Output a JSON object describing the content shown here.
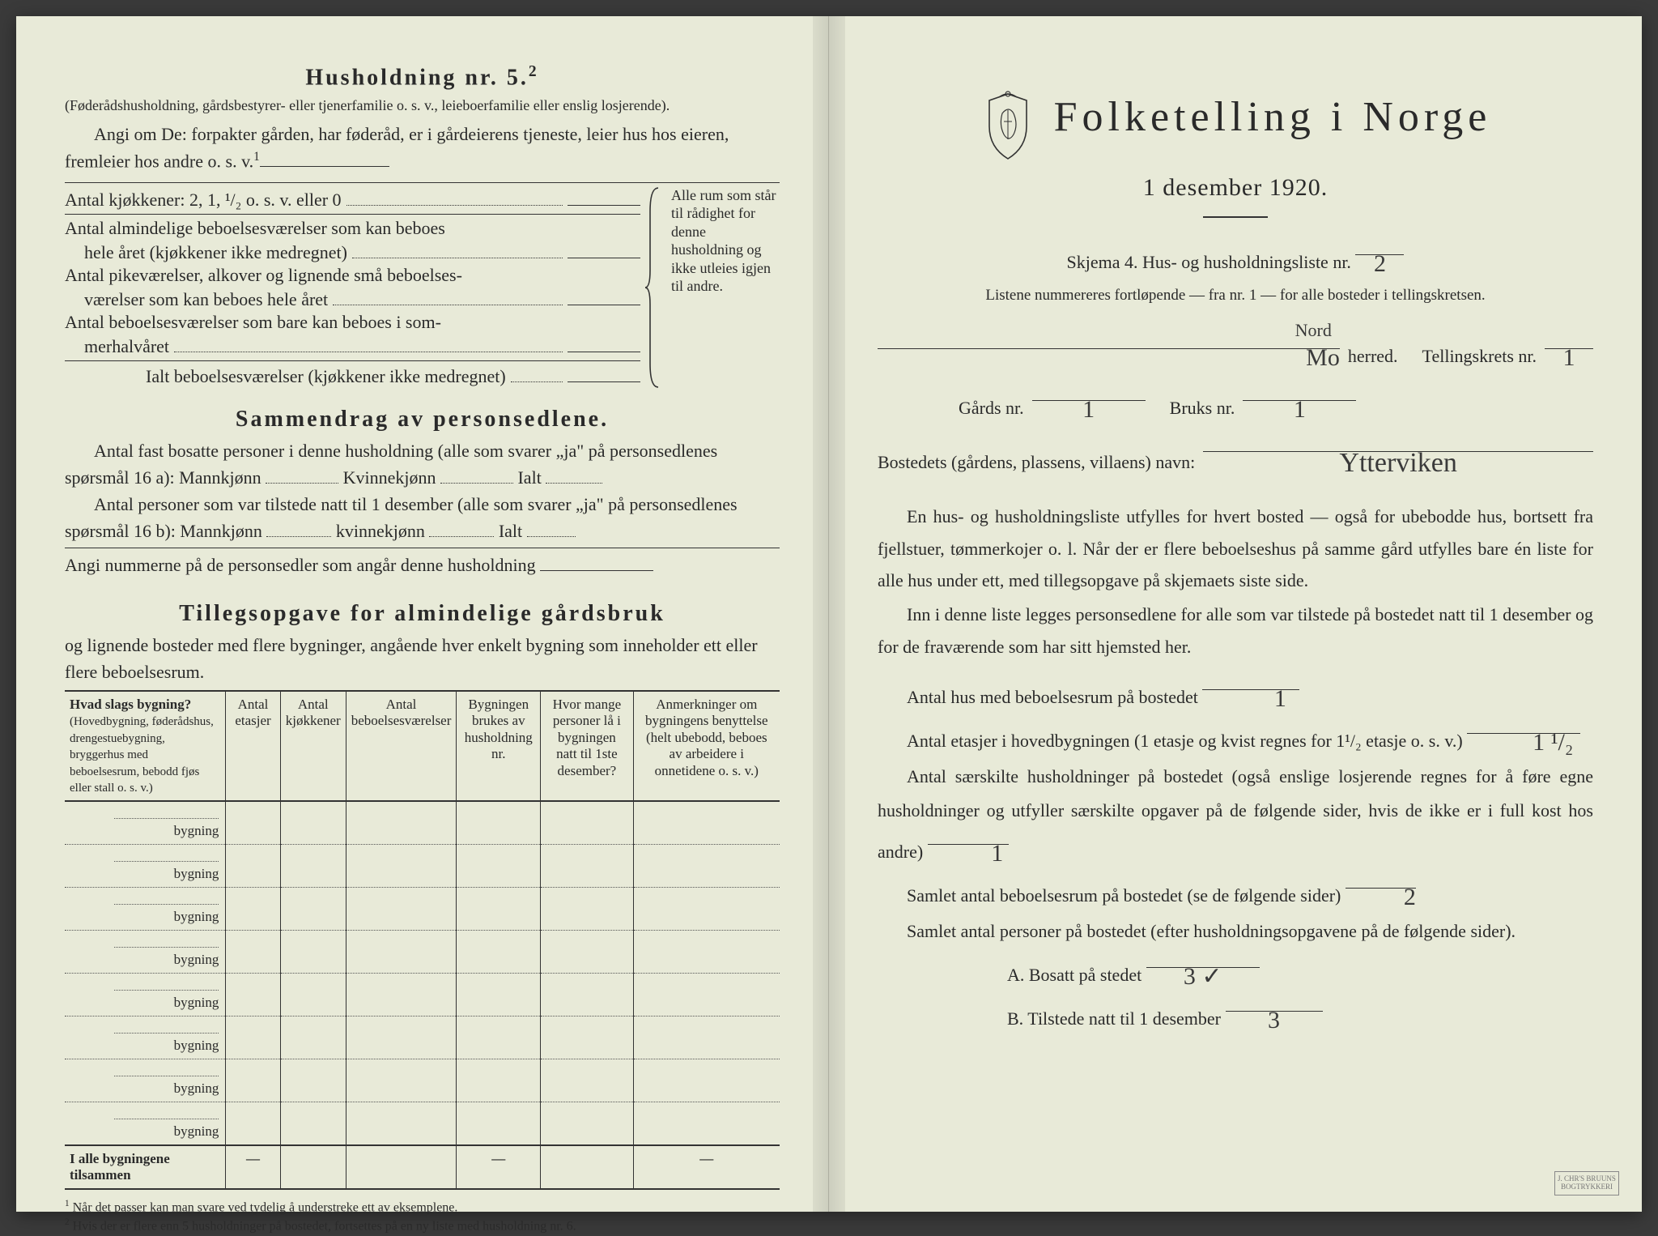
{
  "left": {
    "h5_title": "Husholdning nr. 5.",
    "h5_sup": "2",
    "h5_par": "(Føderådshusholdning, gårdsbestyrer- eller tjenerfamilie o. s. v., leieboerfamilie eller enslig losjerende).",
    "h5_angi_lead": "Angi om De:",
    "h5_angi_cont": "forpakter gården, har føderåd, er i gårdeierens tjeneste, leier hus hos eieren, fremleier hos andre o. s. v.",
    "h5_angi_sup": "1",
    "row_kjokken": "Antal kjøkkener: 2, 1, ¹/₂ o. s. v. eller 0",
    "row_alm1": "Antal almindelige beboelsesværelser som kan beboes",
    "row_alm2": "hele året (kjøkkener ikke medregnet)",
    "row_pike1": "Antal pikeværelser, alkover og lignende små beboelses-",
    "row_pike2": "værelser som kan beboes hele året",
    "row_som1": "Antal beboelsesværelser som bare kan beboes i som-",
    "row_som2": "merhalvåret",
    "row_ialt": "Ialt beboelsesværelser (kjøkkener ikke medregnet)",
    "brace_note": "Alle rum som står til rådighet for denne husholdning og ikke utleies igjen til andre.",
    "sam_title": "Sammendrag av personsedlene.",
    "sam_p1a": "Antal fast bosatte personer i denne husholdning (alle som svarer „ja\" på personsedlenes spørsmål 16 a): Mannkjønn",
    "sam_kv": "Kvinnekjønn",
    "sam_ialt": "Ialt",
    "sam_p2a": "Antal personer som var tilstede natt til 1 desember (alle som svarer „ja\" på personsedlenes spørsmål 16 b): Mannkjønn",
    "sam_kv2": "kvinnekjønn",
    "sam_angi": "Angi nummerne på de personsedler som angår denne husholdning",
    "til_title": "Tillegsopgave for almindelige gårdsbruk",
    "til_sub": "og lignende bosteder med flere bygninger, angående hver enkelt bygning som inneholder ett eller flere beboelsesrum.",
    "table": {
      "col1a": "Hvad slags bygning?",
      "col1b": "(Hovedbygning, føderådshus, drengestuebygning, bryggerhus med beboelsesrum, bebodd fjøs eller stall o. s. v.)",
      "col2": "Antal etasjer",
      "col3": "Antal kjøkkener",
      "col4": "Antal beboelsesværelser",
      "col5": "Bygningen brukes av husholdning nr.",
      "col6": "Hvor mange personer lå i bygningen natt til 1ste desember?",
      "col7": "Anmerkninger om bygningens benyttelse (helt ubebodd, beboes av arbeidere i onnetidene o. s. v.)",
      "bygning": "bygning",
      "total": "I alle bygningene tilsammen"
    },
    "fn1_n": "1",
    "fn1": "Når det passer kan man svare ved tydelig å understreke ett av eksemplene.",
    "fn2_n": "2",
    "fn2": "Hvis der er flere enn 5 husholdninger på bostedet, fortsettes på en ny liste med husholdning nr. 6."
  },
  "right": {
    "title": "Folketelling i Norge",
    "subtitle": "1 desember 1920.",
    "skjema": "Skjema 4.   Hus- og husholdningsliste nr.",
    "skjema_val": "2",
    "listene": "Listene nummereres fortløpende — fra nr. 1 — for alle bosteder i tellingskretsen.",
    "herred_pre_hand": "Nord",
    "herred_hand": "Mo",
    "herred_lbl": "herred.",
    "tellingskrets": "Tellingskrets nr.",
    "tellingskrets_val": "1",
    "gards": "Gårds nr.",
    "gards_val": "1",
    "bruks": "Bruks nr.",
    "bruks_val": "1",
    "bosted": "Bostedets (gårdens, plassens, villaens) navn:",
    "bosted_val": "Ytterviken",
    "para1": "En hus- og husholdningsliste utfylles for hvert bosted — også for ubebodde hus, bortsett fra fjellstuer, tømmerkojer o. l.  Når der er flere beboelseshus på samme gård utfylles bare én liste for alle hus under ett, med tillegsopgave på skjemaets siste side.",
    "para2": "Inn i denne liste legges personsedlene for alle som var tilstede på bostedet natt til 1 desember og for de fraværende som har sitt hjemsted her.",
    "q_hus": "Antal hus med beboelsesrum på bostedet",
    "q_hus_val": "1",
    "q_etasjer": "Antal etasjer i hovedbygningen (1 etasje og kvist regnes for 1¹/₂ etasje o. s. v.)",
    "q_etasjer_val": "1 ¹/₂",
    "q_hush": "Antal særskilte husholdninger på bostedet (også enslige losjerende regnes for å føre egne husholdninger og utfyller særskilte opgaver på de følgende sider, hvis de ikke er i full kost hos andre)",
    "q_hush_val": "1",
    "q_rum": "Samlet antal beboelsesrum på bostedet (se de følgende sider)",
    "q_rum_val": "2",
    "q_pers": "Samlet antal personer på bostedet (efter husholdningsopgavene på de følgende sider).",
    "q_A": "A.  Bosatt på stedet",
    "q_A_val": "3 ✓",
    "q_B": "B.  Tilstede natt til 1 desember",
    "q_B_val": "3"
  }
}
